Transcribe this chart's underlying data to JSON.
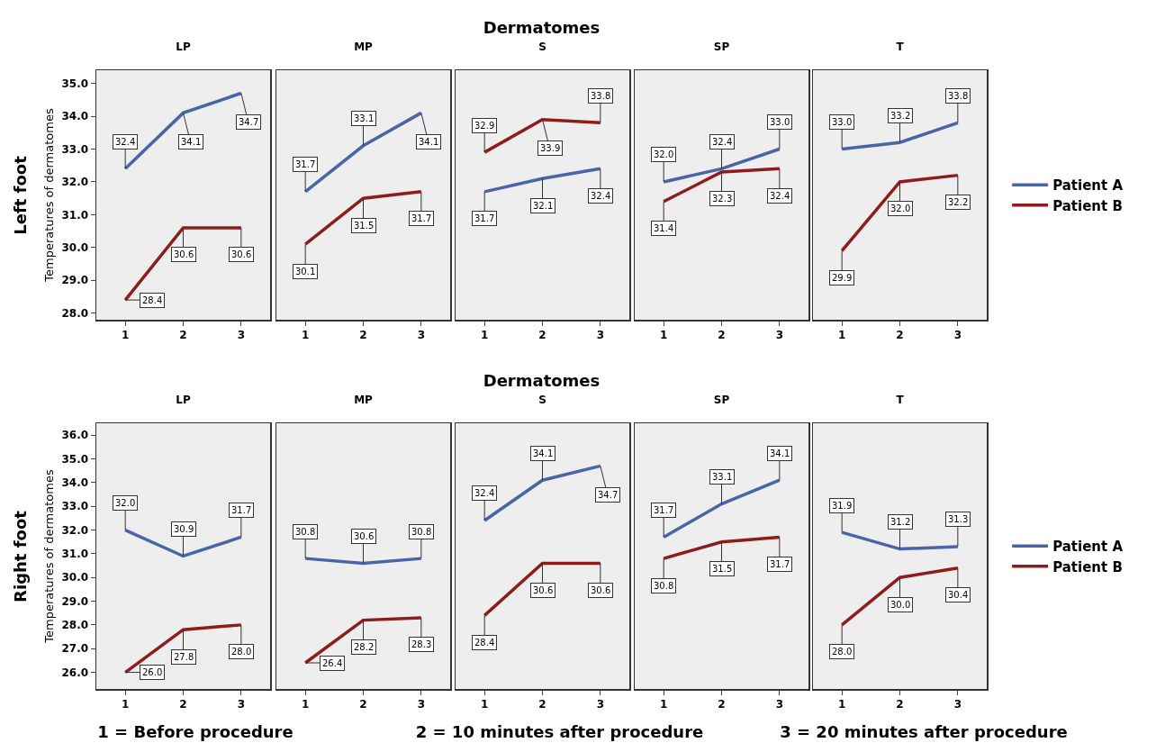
{
  "chart_data": [
    {
      "type": "line",
      "title": "LP",
      "ylabel": "Temperatures of dermatomes",
      "annotations": [
        "Dermatomes",
        "Left foot"
      ],
      "categories": [
        "1",
        "2",
        "3"
      ],
      "ylim": [
        27.8,
        35.4
      ],
      "yticks": [
        {
          "value": 28,
          "label": "28.0"
        },
        {
          "value": 29,
          "label": "29.0"
        },
        {
          "value": 30,
          "label": "30.0"
        },
        {
          "value": 31,
          "label": "31.0"
        },
        {
          "value": 32,
          "label": "32.0"
        },
        {
          "value": 33,
          "label": "33.0"
        },
        {
          "value": 34,
          "label": "34.0"
        },
        {
          "value": 35,
          "label": "35.0"
        }
      ],
      "series": [
        {
          "color": "#4a64a8",
          "values": [
            32.4,
            34.1,
            34.7
          ],
          "value_labels": [
            "32.4",
            "34.1",
            "34.7"
          ]
        },
        {
          "color": "#8e1c1c",
          "values": [
            28.4,
            30.6,
            30.6
          ],
          "value_labels": [
            "28.4",
            "30.6",
            "30.6"
          ]
        }
      ]
    },
    {
      "type": "line",
      "title": "MP",
      "categories": [
        "1",
        "2",
        "3"
      ],
      "ylim": [
        27.8,
        35.4
      ],
      "tick_labels": "x",
      "series": [
        {
          "color": "#4a64a8",
          "values": [
            31.7,
            33.1,
            34.1
          ],
          "value_labels": [
            "31.7",
            "33.1",
            "34.1"
          ]
        },
        {
          "color": "#8e1c1c",
          "values": [
            30.1,
            31.5,
            31.7
          ],
          "value_labels": [
            "30.1",
            "31.5",
            "31.7"
          ]
        }
      ]
    },
    {
      "type": "line",
      "title": "S",
      "categories": [
        "1",
        "2",
        "3"
      ],
      "ylim": [
        27.8,
        35.4
      ],
      "tick_labels": "x",
      "series": [
        {
          "color": "#4a64a8",
          "values": [
            31.7,
            32.1,
            32.4
          ],
          "value_labels": [
            "31.7",
            "32.1",
            "32.4"
          ]
        },
        {
          "color": "#8e1c1c",
          "values": [
            32.9,
            33.9,
            33.8
          ],
          "value_labels": [
            "32.9",
            "33.9",
            "33.8"
          ]
        }
      ]
    },
    {
      "type": "line",
      "title": "SP",
      "categories": [
        "1",
        "2",
        "3"
      ],
      "ylim": [
        27.8,
        35.4
      ],
      "tick_labels": "x",
      "series": [
        {
          "color": "#4a64a8",
          "values": [
            32.0,
            32.4,
            33.0
          ],
          "value_labels": [
            "32.0",
            "32.4",
            "33.0"
          ]
        },
        {
          "color": "#8e1c1c",
          "values": [
            31.4,
            32.3,
            32.4
          ],
          "value_labels": [
            "31.4",
            "32.3",
            "32.4"
          ]
        }
      ]
    },
    {
      "type": "line",
      "title": "T",
      "categories": [
        "1",
        "2",
        "3"
      ],
      "ylim": [
        27.8,
        35.4
      ],
      "tick_labels": "x",
      "legend": "right",
      "series": [
        {
          "name": "Patient A",
          "color": "#4a64a8",
          "values": [
            33.0,
            33.2,
            33.8
          ],
          "value_labels": [
            "33.0",
            "33.2",
            "33.8"
          ]
        },
        {
          "name": "Patient B",
          "color": "#8e1c1c",
          "values": [
            29.9,
            32.0,
            32.2
          ],
          "value_labels": [
            "29.9",
            "32.0",
            "32.2"
          ]
        }
      ]
    },
    {
      "type": "line",
      "title": "LP",
      "ylabel": "Temperatures of dermatomes",
      "annotations": [
        "Dermatomes",
        "Right foot",
        "1 = Before procedure",
        "2 = 10 minutes after procedure",
        "3 = 20 minutes after procedure"
      ],
      "categories": [
        "1",
        "2",
        "3"
      ],
      "ylim": [
        25.3,
        36.5
      ],
      "yticks": [
        {
          "value": 26,
          "label": "26.0"
        },
        {
          "value": 27,
          "label": "27.0"
        },
        {
          "value": 28,
          "label": "28.0"
        },
        {
          "value": 29,
          "label": "29.0"
        },
        {
          "value": 30,
          "label": "30.0"
        },
        {
          "value": 31,
          "label": "31.0"
        },
        {
          "value": 32,
          "label": "32.0"
        },
        {
          "value": 33,
          "label": "33.0"
        },
        {
          "value": 34,
          "label": "34.0"
        },
        {
          "value": 35,
          "label": "35.0"
        },
        {
          "value": 36,
          "label": "36.0"
        }
      ],
      "series": [
        {
          "color": "#4a64a8",
          "values": [
            32.0,
            30.9,
            31.7
          ],
          "value_labels": [
            "32.0",
            "30.9",
            "31.7"
          ]
        },
        {
          "color": "#8e1c1c",
          "values": [
            26.0,
            27.8,
            28.0
          ],
          "value_labels": [
            "26.0",
            "27.8",
            "28.0"
          ]
        }
      ]
    },
    {
      "type": "line",
      "title": "MP",
      "categories": [
        "1",
        "2",
        "3"
      ],
      "ylim": [
        25.3,
        36.5
      ],
      "tick_labels": "x",
      "series": [
        {
          "color": "#4a64a8",
          "values": [
            30.8,
            30.6,
            30.8
          ],
          "value_labels": [
            "30.8",
            "30.6",
            "30.8"
          ]
        },
        {
          "color": "#8e1c1c",
          "values": [
            26.4,
            28.2,
            28.3
          ],
          "value_labels": [
            "26.4",
            "28.2",
            "28.3"
          ]
        }
      ]
    },
    {
      "type": "line",
      "title": "S",
      "categories": [
        "1",
        "2",
        "3"
      ],
      "ylim": [
        25.3,
        36.5
      ],
      "tick_labels": "x",
      "series": [
        {
          "color": "#4a64a8",
          "values": [
            32.4,
            34.1,
            34.7
          ],
          "value_labels": [
            "32.4",
            "34.1",
            "34.7"
          ]
        },
        {
          "color": "#8e1c1c",
          "values": [
            28.4,
            30.6,
            30.6
          ],
          "value_labels": [
            "28.4",
            "30.6",
            "30.6"
          ]
        }
      ]
    },
    {
      "type": "line",
      "title": "SP",
      "categories": [
        "1",
        "2",
        "3"
      ],
      "ylim": [
        25.3,
        36.5
      ],
      "tick_labels": "x",
      "series": [
        {
          "color": "#4a64a8",
          "values": [
            31.7,
            33.1,
            34.1
          ],
          "value_labels": [
            "31.7",
            "33.1",
            "34.1"
          ]
        },
        {
          "color": "#8e1c1c",
          "values": [
            30.8,
            31.5,
            31.7
          ],
          "value_labels": [
            "30.8",
            "31.5",
            "31.7"
          ]
        }
      ]
    },
    {
      "type": "line",
      "title": "T",
      "categories": [
        "1",
        "2",
        "3"
      ],
      "ylim": [
        25.3,
        36.5
      ],
      "tick_labels": "x",
      "legend": "right",
      "series": [
        {
          "name": "Patient A",
          "color": "#4a64a8",
          "values": [
            31.9,
            31.2,
            31.3
          ],
          "value_labels": [
            "31.9",
            "31.2",
            "31.3"
          ]
        },
        {
          "name": "Patient B",
          "color": "#8e1c1c",
          "values": [
            28.0,
            30.0,
            30.4
          ],
          "value_labels": [
            "28.0",
            "30.0",
            "30.4"
          ]
        }
      ]
    }
  ]
}
